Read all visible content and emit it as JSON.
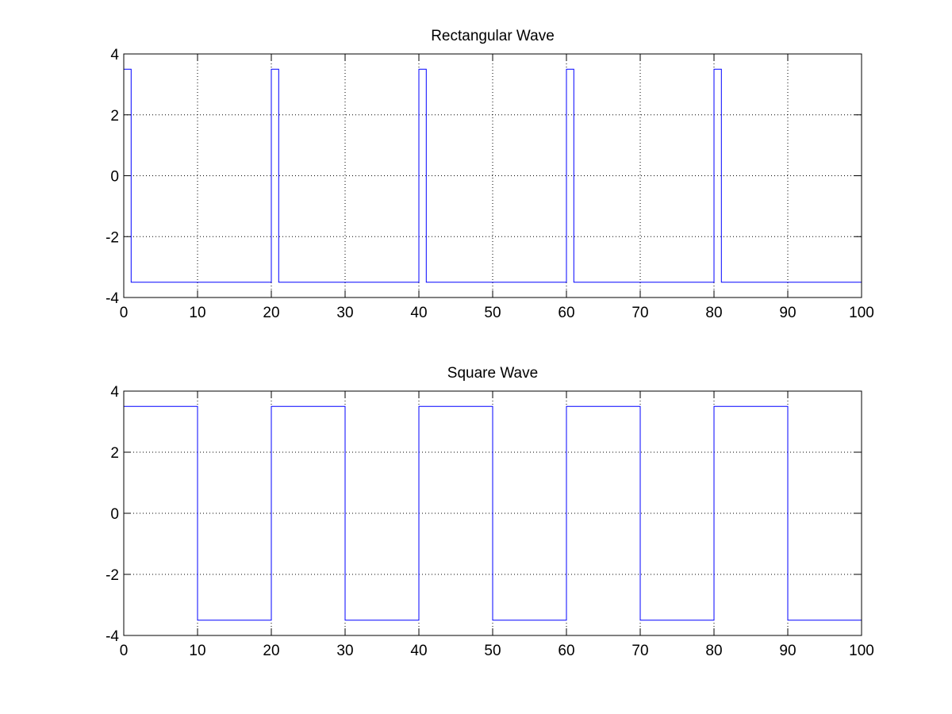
{
  "chart_data": [
    {
      "type": "line",
      "title": "Rectangular Wave",
      "xlabel": "",
      "ylabel": "",
      "xlim": [
        0,
        100
      ],
      "ylim": [
        -4,
        4
      ],
      "xticks": [
        0,
        10,
        20,
        30,
        40,
        50,
        60,
        70,
        80,
        90,
        100
      ],
      "yticks": [
        -4,
        -2,
        0,
        2,
        4
      ],
      "xtick_labels": [
        "0",
        "10",
        "20",
        "30",
        "40",
        "50",
        "60",
        "70",
        "80",
        "90",
        "100"
      ],
      "ytick_labels": [
        "-4",
        "-2",
        "0",
        "2",
        "4"
      ],
      "grid": true,
      "series": [
        {
          "color": "#0000ff",
          "x": [
            0,
            0,
            1,
            1,
            20,
            20,
            21,
            21,
            40,
            40,
            41,
            41,
            60,
            60,
            61,
            61,
            80,
            80,
            81,
            81,
            100,
            100
          ],
          "y": [
            0,
            3.5,
            3.5,
            -3.5,
            -3.5,
            3.5,
            3.5,
            -3.5,
            -3.5,
            3.5,
            3.5,
            -3.5,
            -3.5,
            3.5,
            3.5,
            -3.5,
            -3.5,
            3.5,
            3.5,
            -3.5,
            -3.5,
            0
          ]
        }
      ]
    },
    {
      "type": "line",
      "title": "Square Wave",
      "xlabel": "",
      "ylabel": "",
      "xlim": [
        0,
        100
      ],
      "ylim": [
        -4,
        4
      ],
      "xticks": [
        0,
        10,
        20,
        30,
        40,
        50,
        60,
        70,
        80,
        90,
        100
      ],
      "yticks": [
        -4,
        -2,
        0,
        2,
        4
      ],
      "xtick_labels": [
        "0",
        "10",
        "20",
        "30",
        "40",
        "50",
        "60",
        "70",
        "80",
        "90",
        "100"
      ],
      "ytick_labels": [
        "-4",
        "-2",
        "0",
        "2",
        "4"
      ],
      "grid": true,
      "series": [
        {
          "color": "#0000ff",
          "x": [
            0,
            10,
            10,
            20,
            20,
            30,
            30,
            40,
            40,
            50,
            50,
            60,
            60,
            70,
            70,
            80,
            80,
            90,
            90,
            100,
            100
          ],
          "y": [
            3.5,
            3.5,
            -3.5,
            -3.5,
            3.5,
            3.5,
            -3.5,
            -3.5,
            3.5,
            3.5,
            -3.5,
            -3.5,
            3.5,
            3.5,
            -3.5,
            -3.5,
            3.5,
            3.5,
            -3.5,
            -3.5,
            0
          ]
        }
      ]
    }
  ]
}
